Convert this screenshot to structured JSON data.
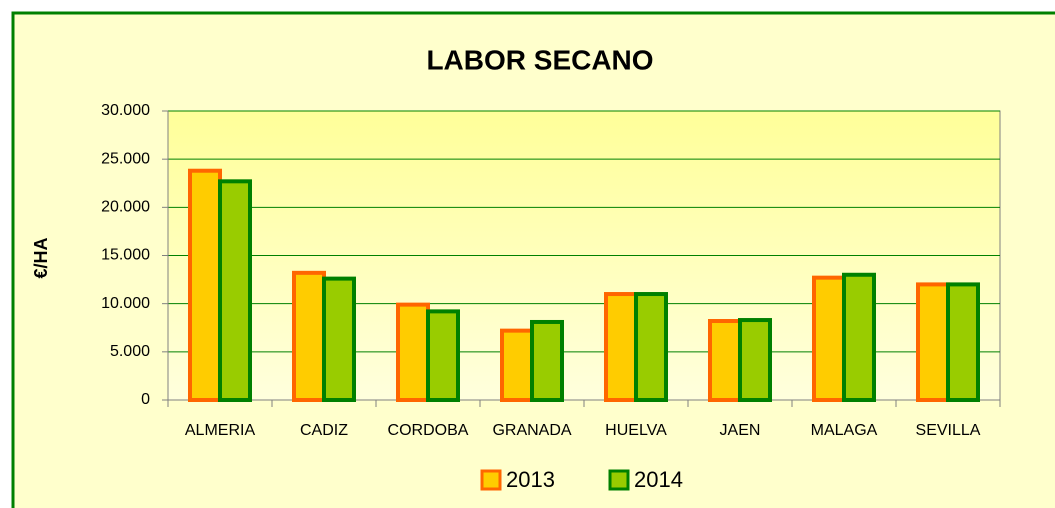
{
  "chart_data": {
    "type": "bar",
    "title": "LABOR SECANO",
    "y_label": "€/HA",
    "categories": [
      "ALMERIA",
      "CADIZ",
      "CORDOBA",
      "GRANADA",
      "HUELVA",
      "JAEN",
      "MALAGA",
      "SEVILLA"
    ],
    "series": [
      {
        "name": "2013",
        "color": "#ffcc00",
        "edge": "#ff6600",
        "values": [
          23800,
          13200,
          9900,
          7200,
          11000,
          8200,
          12700,
          12000
        ]
      },
      {
        "name": "2014",
        "color": "#99cc00",
        "edge": "#008000",
        "values": [
          22700,
          12600,
          9200,
          8100,
          11000,
          8300,
          13000,
          12000
        ]
      }
    ],
    "ylim": [
      0,
      30000
    ],
    "yticks": [
      0,
      {
        "value": 5000,
        "label": "5.000"
      },
      {
        "value": 10000,
        "label": "10.000"
      },
      {
        "value": 15000,
        "label": "15.000"
      },
      {
        "value": 20000,
        "label": "20.000"
      },
      {
        "value": 25000,
        "label": "25.000"
      },
      {
        "value": 30000,
        "label": "30.000"
      }
    ],
    "grid": true,
    "legend": "bottom"
  }
}
